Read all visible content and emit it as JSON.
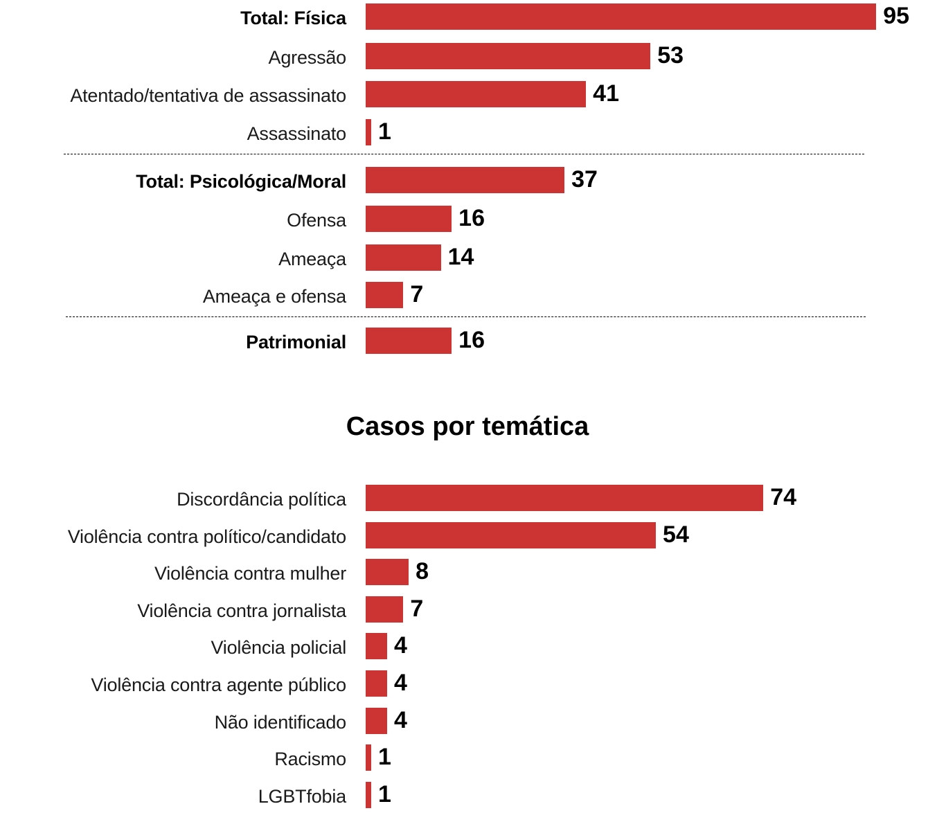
{
  "chart_data": [
    {
      "type": "bar",
      "orientation": "horizontal",
      "title": "",
      "xlabel": "",
      "ylabel": "",
      "bar_color": "#cc3333",
      "groups": [
        {
          "name": "Física",
          "items": [
            {
              "label": "Total: Física",
              "value": 95,
              "bold": true
            },
            {
              "label": "Agressão",
              "value": 53,
              "bold": false
            },
            {
              "label": "Atentado/tentativa de assassinato",
              "value": 41,
              "bold": false
            },
            {
              "label": "Assassinato",
              "value": 1,
              "bold": false
            }
          ]
        },
        {
          "name": "Psicológica/Moral",
          "items": [
            {
              "label": "Total: Psicológica/Moral",
              "value": 37,
              "bold": true
            },
            {
              "label": "Ofensa",
              "value": 16,
              "bold": false
            },
            {
              "label": "Ameaça",
              "value": 14,
              "bold": false
            },
            {
              "label": "Ameaça e ofensa",
              "value": 7,
              "bold": false
            }
          ]
        },
        {
          "name": "Patrimonial",
          "items": [
            {
              "label": "Patrimonial",
              "value": 16,
              "bold": true
            }
          ]
        }
      ],
      "grid": false,
      "legend": "none"
    },
    {
      "type": "bar",
      "orientation": "horizontal",
      "title": "Casos por temática",
      "xlabel": "",
      "ylabel": "",
      "bar_color": "#cc3333",
      "categories": [
        "Discordância política",
        "Violência contra político/candidato",
        "Violência contra mulher",
        "Violência contra jornalista",
        "Violência policial",
        "Violência contra agente público",
        "Não identificado",
        "Racismo",
        "LGBTfobia"
      ],
      "values": [
        74,
        54,
        8,
        7,
        4,
        4,
        4,
        1,
        1
      ],
      "grid": false,
      "legend": "none"
    }
  ]
}
